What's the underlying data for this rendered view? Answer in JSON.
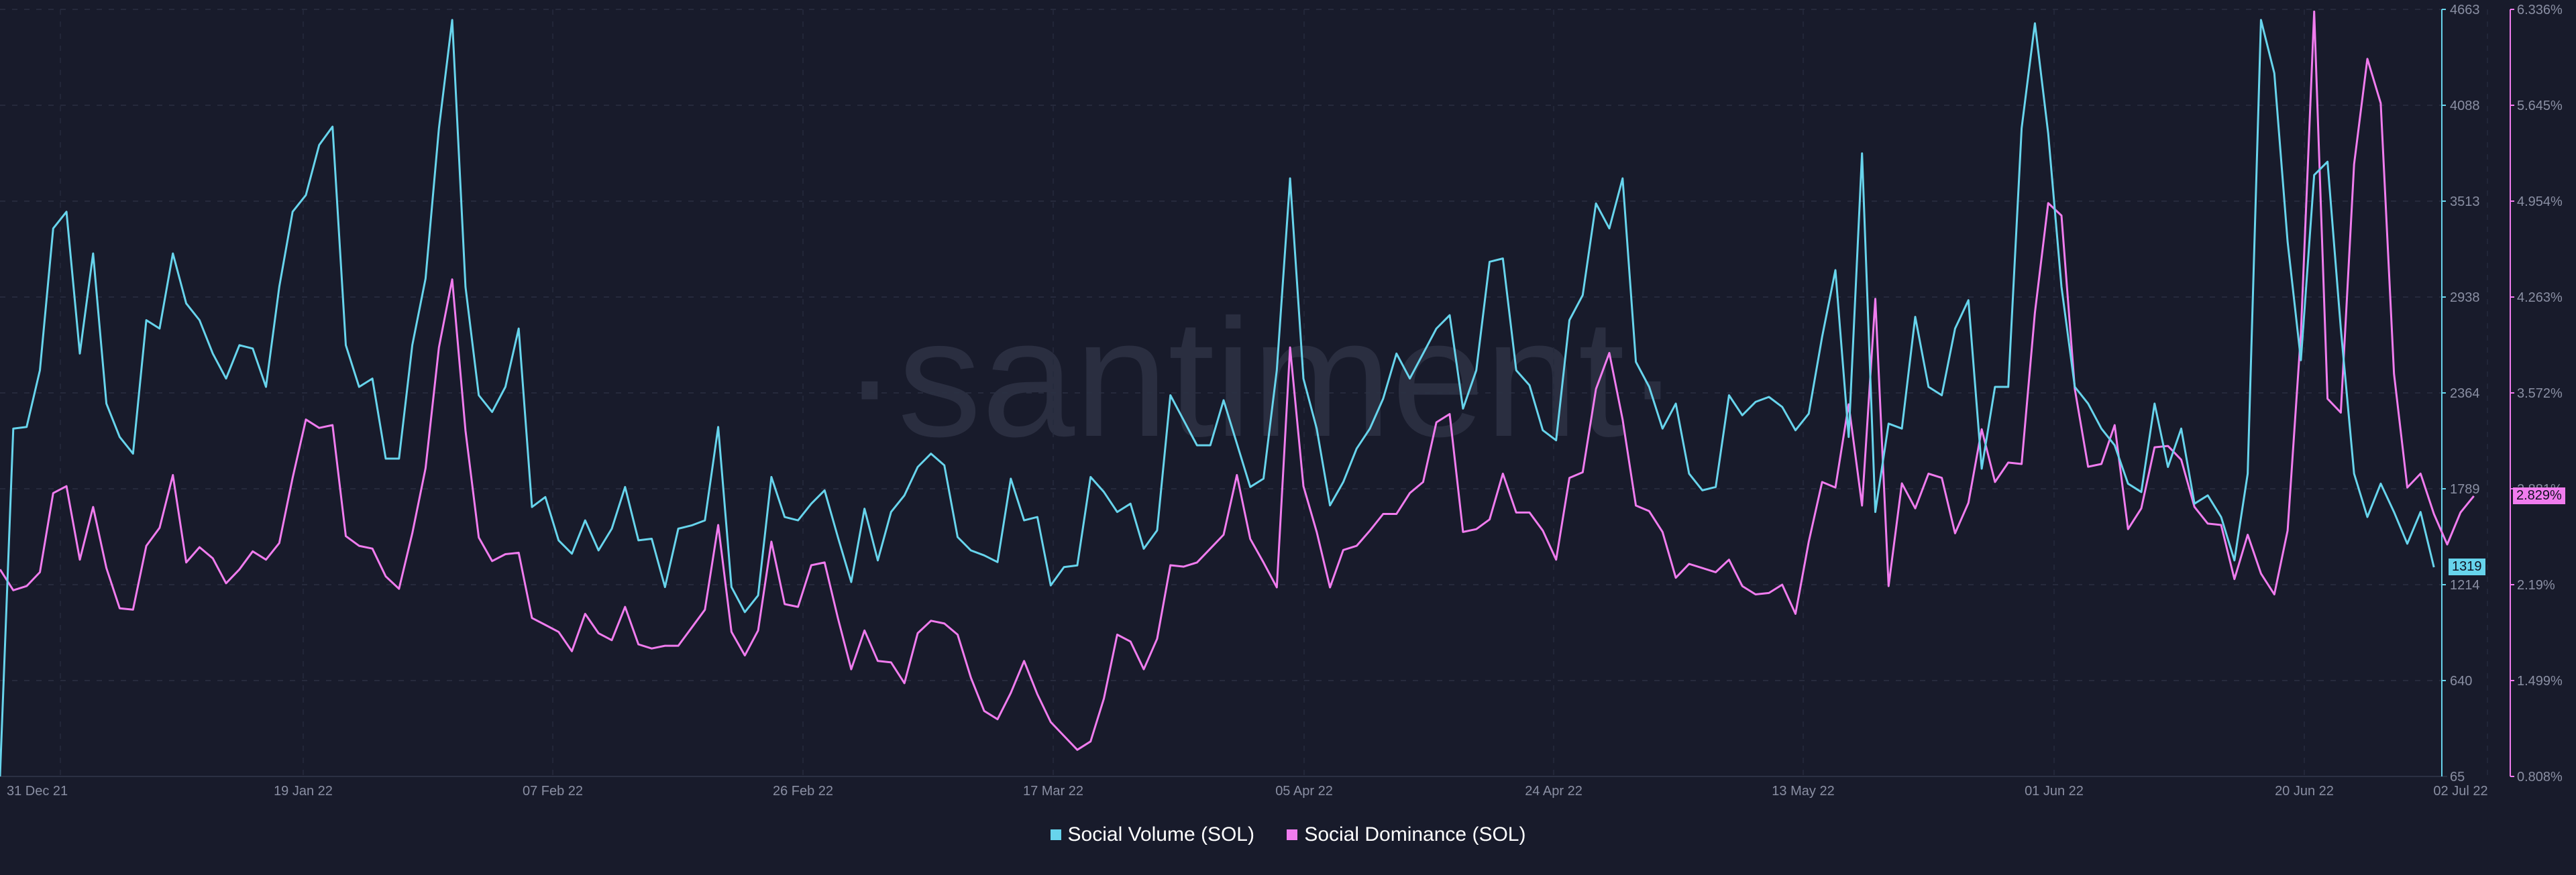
{
  "watermark": "·santiment·",
  "chart_data": {
    "type": "line",
    "title": "",
    "x_labels": [
      "31 Dec 21",
      "19 Jan 22",
      "07 Feb 22",
      "26 Feb 22",
      "17 Mar 22",
      "05 Apr 22",
      "24 Apr 22",
      "13 May 22",
      "01 Jun 22",
      "20 Jun 22",
      "02 Jul 22"
    ],
    "x_range": [
      0,
      184
    ],
    "y_left": {
      "label": "Social Volume (SOL)",
      "ticks": [
        "4663",
        "4088",
        "3513",
        "2938",
        "2364",
        "1789",
        "1214",
        "640",
        "65"
      ],
      "range": [
        65,
        4663
      ]
    },
    "y_right": {
      "label": "Social Dominance (SOL)",
      "ticks": [
        "6.336%",
        "5.645%",
        "4.954%",
        "4.263%",
        "3.572%",
        "2.881%",
        "2.19%",
        "1.499%",
        "0.808%"
      ],
      "range": [
        0.808,
        6.336
      ]
    },
    "series": [
      {
        "name": "Social Volume (SOL)",
        "color": "#67d4ec",
        "axis": "left",
        "current_value": "1319",
        "values": [
          65,
          2150,
          2160,
          2500,
          3350,
          3450,
          2600,
          3200,
          2300,
          2100,
          2000,
          2800,
          2750,
          3200,
          2900,
          2800,
          2600,
          2450,
          2650,
          2630,
          2400,
          3000,
          3450,
          3550,
          3850,
          3960,
          2650,
          2400,
          2450,
          1970,
          1970,
          2650,
          3050,
          3950,
          4600,
          3000,
          2350,
          2250,
          2400,
          2750,
          1680,
          1740,
          1480,
          1400,
          1600,
          1420,
          1550,
          1800,
          1480,
          1490,
          1200,
          1550,
          1570,
          1600,
          2160,
          1200,
          1050,
          1150,
          1860,
          1620,
          1600,
          1700,
          1780,
          1500,
          1230,
          1670,
          1360,
          1650,
          1750,
          1920,
          2000,
          1930,
          1500,
          1420,
          1390,
          1350,
          1850,
          1600,
          1620,
          1210,
          1320,
          1330,
          1860,
          1770,
          1650,
          1700,
          1430,
          1540,
          2350,
          2200,
          2050,
          2050,
          2320,
          2060,
          1800,
          1850,
          2500,
          3650,
          2450,
          2150,
          1690,
          1830,
          2030,
          2150,
          2330,
          2600,
          2450,
          2600,
          2750,
          2830,
          2270,
          2500,
          3150,
          3170,
          2500,
          2410,
          2140,
          2080,
          2800,
          2950,
          3500,
          3350,
          3650,
          2550,
          2400,
          2150,
          2300,
          1880,
          1780,
          1800,
          2350,
          2230,
          2310,
          2340,
          2280,
          2140,
          2240,
          2700,
          3100,
          2100,
          3800,
          1650,
          2180,
          2150,
          2820,
          2400,
          2350,
          2750,
          2920,
          1910,
          2400,
          2400,
          3950,
          4580,
          3920,
          3000,
          2400,
          2300,
          2150,
          2050,
          1820,
          1770,
          2300,
          1920,
          2150,
          1700,
          1750,
          1620,
          1360,
          1880,
          4600,
          4280,
          3270,
          2560,
          3670,
          3750,
          2750,
          1880,
          1620,
          1820,
          1650,
          1460,
          1650,
          1319
        ]
      },
      {
        "name": "Social Dominance (SOL)",
        "color": "#f07cee",
        "axis": "right",
        "current_value": "2.829%",
        "values": [
          2.3,
          2.15,
          2.18,
          2.28,
          2.85,
          2.9,
          2.37,
          2.75,
          2.31,
          2.02,
          2.01,
          2.47,
          2.6,
          2.98,
          2.35,
          2.46,
          2.38,
          2.2,
          2.3,
          2.43,
          2.37,
          2.49,
          2.96,
          3.38,
          3.32,
          3.34,
          2.54,
          2.47,
          2.45,
          2.25,
          2.16,
          2.56,
          3.03,
          3.9,
          4.39,
          3.3,
          2.53,
          2.36,
          2.41,
          2.42,
          1.95,
          1.9,
          1.85,
          1.71,
          1.98,
          1.84,
          1.79,
          2.03,
          1.76,
          1.73,
          1.75,
          1.75,
          1.88,
          2.01,
          2.62,
          1.85,
          1.68,
          1.86,
          2.5,
          2.05,
          2.03,
          2.33,
          2.35,
          1.95,
          1.58,
          1.86,
          1.64,
          1.63,
          1.48,
          1.84,
          1.93,
          1.91,
          1.83,
          1.52,
          1.28,
          1.22,
          1.41,
          1.64,
          1.4,
          1.2,
          1.1,
          1.0,
          1.06,
          1.37,
          1.83,
          1.78,
          1.58,
          1.8,
          2.33,
          2.32,
          2.35,
          2.45,
          2.55,
          2.98,
          2.52,
          2.35,
          2.17,
          3.9,
          2.9,
          2.57,
          2.17,
          2.44,
          2.47,
          2.58,
          2.7,
          2.7,
          2.85,
          2.93,
          3.36,
          3.42,
          2.57,
          2.59,
          2.66,
          2.99,
          2.71,
          2.71,
          2.58,
          2.37,
          2.96,
          3.0,
          3.6,
          3.86,
          3.38,
          2.76,
          2.72,
          2.57,
          2.24,
          2.34,
          2.31,
          2.28,
          2.37,
          2.18,
          2.12,
          2.13,
          2.19,
          1.98,
          2.5,
          2.93,
          2.89,
          3.49,
          2.76,
          4.25,
          2.18,
          2.92,
          2.74,
          2.99,
          2.96,
          2.56,
          2.78,
          3.31,
          2.93,
          3.07,
          3.06,
          4.15,
          4.94,
          4.85,
          3.6,
          3.04,
          3.06,
          3.34,
          2.59,
          2.74,
          3.18,
          3.19,
          3.09,
          2.75,
          2.63,
          2.62,
          2.23,
          2.55,
          2.27,
          2.12,
          2.58,
          4.0,
          6.32,
          3.53,
          3.43,
          5.22,
          5.98,
          5.66,
          3.71,
          2.89,
          2.99,
          2.7,
          2.48,
          2.71,
          2.829
        ]
      }
    ],
    "legend": "bottom-center",
    "grid": true
  }
}
